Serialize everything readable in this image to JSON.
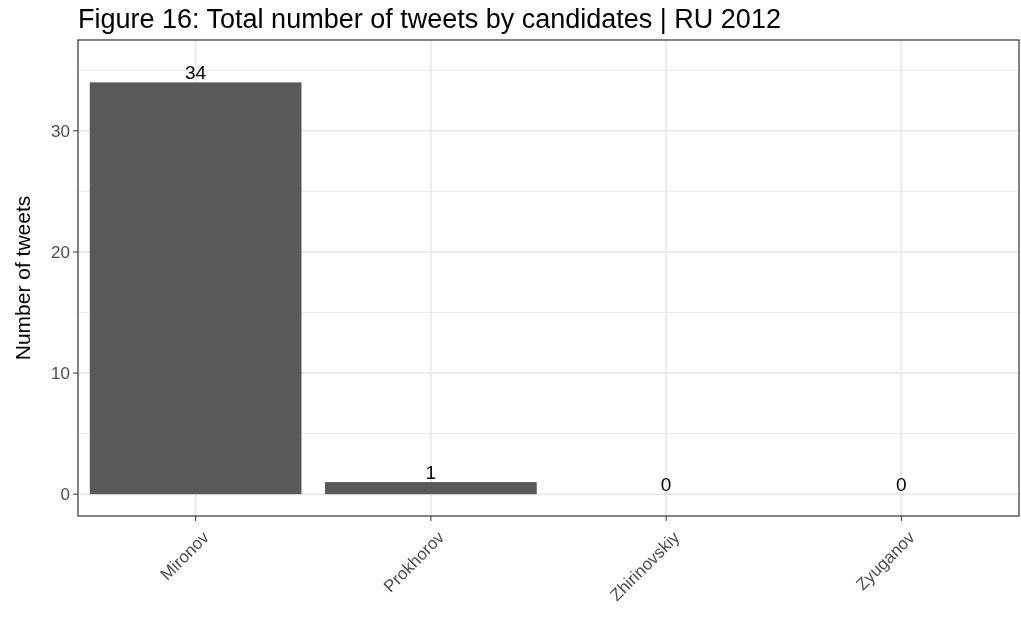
{
  "chart_data": {
    "type": "bar",
    "title": "Figure 16: Total number of tweets by candidates | RU 2012",
    "ylabel": "Number of tweets",
    "categories": [
      "Mironov",
      "Prokhorov",
      "Zhirinovskiy",
      "Zyuganov"
    ],
    "values": [
      34,
      1,
      0,
      0
    ],
    "color": "#595959",
    "data_labels": true,
    "ylim": [
      -1.8,
      37.5
    ],
    "yticks": [
      0,
      {
        "value": 5,
        "label": null
      },
      10,
      {
        "value": 15,
        "label": null
      },
      20,
      {
        "value": 25,
        "label": null
      },
      30,
      {
        "value": 35,
        "label": null
      }
    ],
    "grid": true
  }
}
